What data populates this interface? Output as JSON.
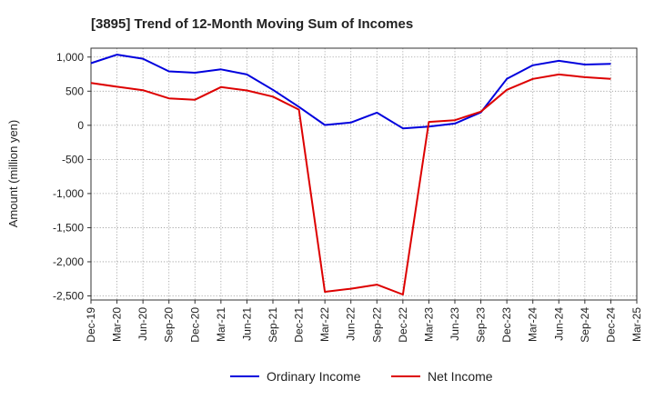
{
  "chart_data": {
    "type": "line",
    "title": "[3895]  Trend of 12-Month Moving Sum of Incomes",
    "xlabel": "",
    "ylabel": "Amount (million yen)",
    "ylim": [
      -2560,
      1130
    ],
    "yticks": [
      1000,
      500,
      0,
      -500,
      -1000,
      -1500,
      -2000,
      -2500
    ],
    "ytick_labels": [
      "1,000",
      "500",
      "0",
      "-500",
      "-1,000",
      "-1,500",
      "-2,000",
      "-2,500"
    ],
    "categories": [
      "Dec-19",
      "Mar-20",
      "Jun-20",
      "Sep-20",
      "Dec-20",
      "Mar-21",
      "Jun-21",
      "Sep-21",
      "Dec-21",
      "Mar-22",
      "Jun-22",
      "Sep-22",
      "Dec-22",
      "Mar-23",
      "Jun-23",
      "Sep-23",
      "Dec-23",
      "Mar-24",
      "Jun-24",
      "Sep-24",
      "Dec-24",
      "Mar-25"
    ],
    "grid": true,
    "legend_position": "bottom-center",
    "series": [
      {
        "name": "Ordinary Income",
        "color": "#0000dd",
        "values": [
          910,
          1035,
          975,
          790,
          770,
          820,
          745,
          520,
          270,
          5,
          40,
          185,
          -45,
          -20,
          25,
          190,
          680,
          880,
          945,
          890,
          900,
          null
        ]
      },
      {
        "name": "Net Income",
        "color": "#dd0000",
        "values": [
          620,
          565,
          515,
          395,
          375,
          560,
          510,
          420,
          230,
          -2440,
          -2395,
          -2335,
          -2480,
          50,
          75,
          200,
          520,
          680,
          745,
          705,
          680,
          null
        ]
      }
    ]
  }
}
